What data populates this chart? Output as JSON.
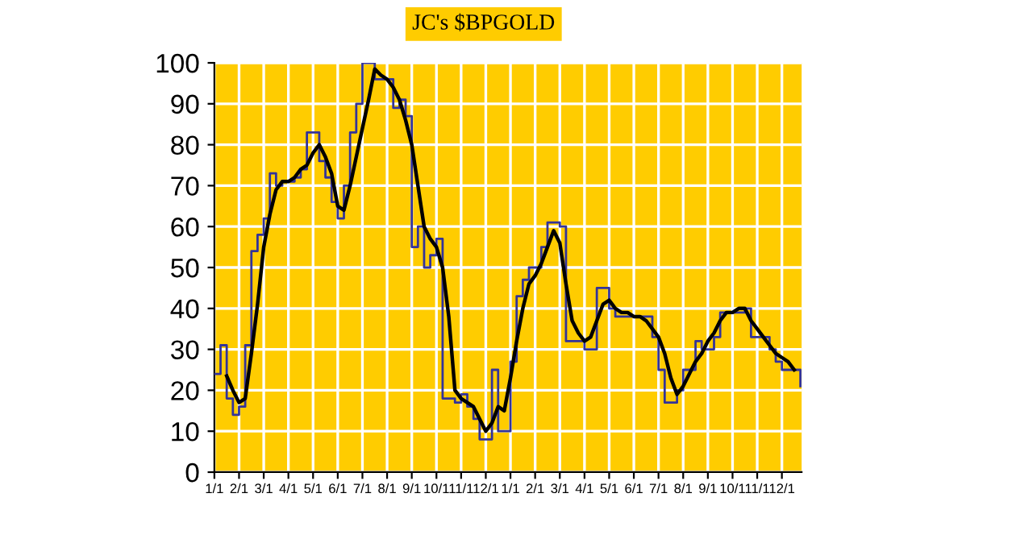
{
  "chart_data": {
    "type": "line",
    "title": "JC's $BPGOLD",
    "categories": [
      "1/1",
      null,
      null,
      null,
      "2/1",
      null,
      null,
      null,
      "3/1",
      null,
      null,
      null,
      "4/1",
      null,
      null,
      null,
      "5/1",
      null,
      null,
      null,
      "6/1",
      null,
      null,
      null,
      "7/1",
      null,
      null,
      null,
      "8/1",
      null,
      null,
      null,
      "9/1",
      null,
      null,
      null,
      "10/1",
      null,
      null,
      null,
      "11/1",
      null,
      null,
      null,
      "12/1",
      null,
      null,
      null,
      "1/1",
      null,
      null,
      null,
      "2/1",
      null,
      null,
      null,
      "3/1",
      null,
      null,
      null,
      "4/1",
      null,
      null,
      null,
      "5/1",
      null,
      null,
      null,
      "6/1",
      null,
      null,
      null,
      "7/1",
      null,
      null,
      null,
      "8/1",
      null,
      null,
      null,
      "9/1",
      null,
      null,
      null,
      "10/1",
      null,
      null,
      null,
      "11/1",
      null,
      null,
      null,
      "12/1",
      null,
      null,
      null
    ],
    "ylim": [
      0,
      100
    ],
    "yticks": [
      0,
      10,
      20,
      30,
      40,
      50,
      60,
      70,
      80,
      90,
      100
    ],
    "grid": true,
    "series": [
      {
        "type": "step",
        "color": "#33339a",
        "values": [
          24,
          31,
          18,
          14,
          16,
          31,
          54,
          58,
          62,
          73,
          70,
          71,
          71,
          72,
          74,
          83,
          83,
          76,
          72,
          66,
          62,
          70,
          83,
          90,
          100,
          100,
          96,
          96,
          96,
          89,
          91,
          87,
          55,
          60,
          50,
          53,
          57,
          18,
          18,
          17,
          19,
          16,
          13,
          8,
          8,
          25,
          10,
          10,
          27,
          43,
          47,
          50,
          50,
          55,
          61,
          61,
          60,
          32,
          32,
          32,
          30,
          30,
          45,
          45,
          40,
          38,
          38,
          38,
          38,
          38,
          38,
          33,
          25,
          17,
          17,
          20,
          25,
          25,
          32,
          30,
          30,
          33,
          39,
          39,
          39,
          39,
          40,
          33,
          33,
          33,
          30,
          27,
          25,
          25,
          25,
          21
        ]
      },
      {
        "color": "#000000",
        "values": [
          null,
          null,
          23.5,
          20,
          17,
          18,
          29,
          41,
          55,
          63,
          69,
          71,
          71,
          72,
          74,
          75,
          78,
          80,
          77,
          73,
          65,
          64,
          70,
          77,
          84,
          91,
          98.5,
          97,
          96,
          94,
          91,
          86,
          80,
          70,
          60,
          57,
          55,
          50,
          38,
          20,
          18,
          17,
          16,
          13,
          10,
          12,
          16,
          15,
          23,
          32,
          40,
          46,
          48,
          51,
          55,
          59,
          56,
          46,
          37,
          34,
          32,
          33,
          37,
          41,
          42,
          40,
          39,
          39,
          38,
          38,
          37,
          35,
          33,
          29,
          23,
          19,
          21,
          24,
          27,
          29,
          32,
          34,
          37,
          39,
          39,
          40,
          40,
          37,
          35,
          33,
          31,
          29,
          28,
          27,
          25,
          null
        ]
      }
    ]
  }
}
